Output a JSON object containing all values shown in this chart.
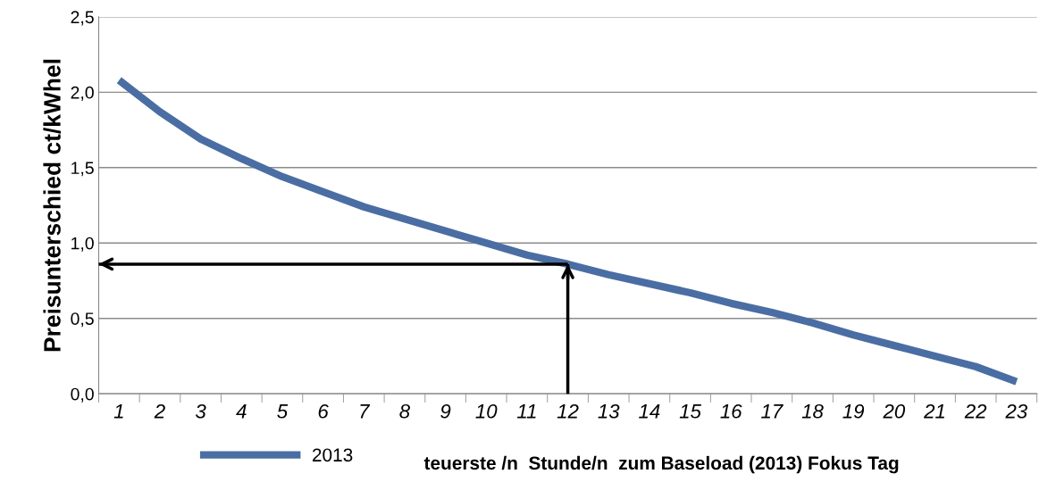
{
  "chart_data": {
    "type": "line",
    "ylabel": "Preisunterschied ct/kWhel",
    "xlabel": "teuerste /n  Stunde/n  zum Baseload (2013) Fokus Tag",
    "categories": [
      "1",
      "2",
      "3",
      "4",
      "5",
      "6",
      "7",
      "8",
      "9",
      "10",
      "11",
      "12",
      "13",
      "14",
      "15",
      "16",
      "17",
      "18",
      "19",
      "20",
      "21",
      "22",
      "23"
    ],
    "series": [
      {
        "name": "2013",
        "color": "#4a6ea3",
        "values": [
          2.08,
          1.87,
          1.69,
          1.56,
          1.44,
          1.34,
          1.24,
          1.16,
          1.08,
          1.0,
          0.92,
          0.86,
          0.79,
          0.73,
          0.67,
          0.6,
          0.54,
          0.47,
          0.39,
          0.32,
          0.25,
          0.18,
          0.08
        ]
      }
    ],
    "ylim": [
      0,
      2.5
    ],
    "yticks": [
      {
        "value": 0,
        "label": "0,0"
      },
      {
        "value": 0.5,
        "label": "0,5"
      },
      {
        "value": 1,
        "label": "1,0"
      },
      {
        "value": 1.5,
        "label": "1,5"
      },
      {
        "value": 2,
        "label": "2,0"
      },
      {
        "value": 2.5,
        "label": "2,5"
      }
    ],
    "grid": "y",
    "legend": "bottom",
    "marker": "none",
    "line_style": "solid",
    "ref_lines": [
      {
        "axis": "y",
        "value": 0.86,
        "color": "#000000",
        "line_style": "solid"
      },
      {
        "axis": "x",
        "value": "12",
        "color": "#000000",
        "line_style": "solid"
      }
    ]
  }
}
